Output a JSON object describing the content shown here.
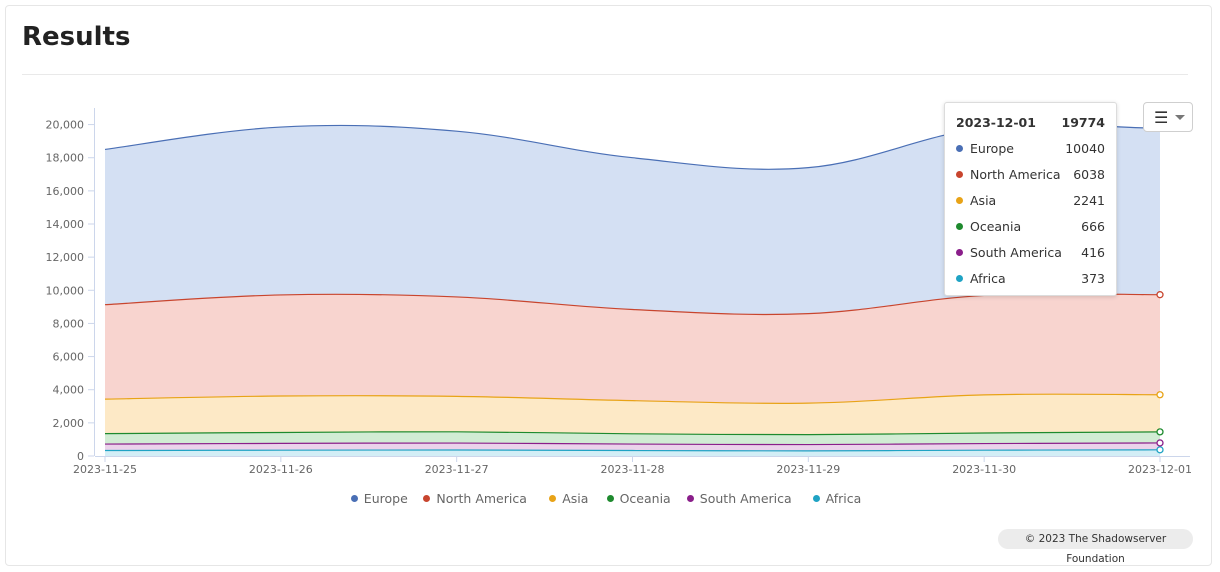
{
  "page": {
    "title": "Results"
  },
  "toolbar": {
    "menu_icon": "hamburger-icon"
  },
  "tooltip": {
    "date": "2023-12-01",
    "total": "19774",
    "rows": [
      {
        "label": "Europe",
        "value": "10040",
        "color": "#4a6fb5"
      },
      {
        "label": "North America",
        "value": "6038",
        "color": "#c8452e"
      },
      {
        "label": "Asia",
        "value": "2241",
        "color": "#e8a317"
      },
      {
        "label": "Oceania",
        "value": "666",
        "color": "#1e8a2e"
      },
      {
        "label": "South America",
        "value": "416",
        "color": "#8a1e8a"
      },
      {
        "label": "Africa",
        "value": "373",
        "color": "#1fa3c4"
      }
    ]
  },
  "credit": "© 2023 The Shadowserver Foundation",
  "chart_data": {
    "type": "area",
    "stacked": true,
    "x": [
      "2023-11-25",
      "2023-11-26",
      "2023-11-27",
      "2023-11-28",
      "2023-11-29",
      "2023-11-30",
      "2023-12-01"
    ],
    "ylim": [
      0,
      21000
    ],
    "yticks": [
      0,
      2000,
      4000,
      6000,
      8000,
      10000,
      12000,
      14000,
      16000,
      18000,
      20000
    ],
    "ytick_labels": [
      "0",
      "2,000",
      "4,000",
      "6,000",
      "8,000",
      "10,000",
      "12,000",
      "14,000",
      "16,000",
      "18,000",
      "20,000"
    ],
    "grid": false,
    "legend": "bottom-center",
    "series": [
      {
        "name": "Africa",
        "color": "#1fa3c4",
        "fill": "#d3eef6",
        "values": [
          330,
          350,
          360,
          330,
          310,
          350,
          373
        ]
      },
      {
        "name": "South America",
        "color": "#8a1e8a",
        "fill": "#ebd3eb",
        "values": [
          390,
          410,
          420,
          390,
          380,
          400,
          416
        ]
      },
      {
        "name": "Oceania",
        "color": "#1e8a2e",
        "fill": "#d1ecd4",
        "values": [
          630,
          660,
          680,
          620,
          600,
          640,
          666
        ]
      },
      {
        "name": "Asia",
        "color": "#e8a317",
        "fill": "#fde9c6",
        "values": [
          2080,
          2200,
          2140,
          2000,
          1900,
          2300,
          2241
        ]
      },
      {
        "name": "North America",
        "color": "#c8452e",
        "fill": "#f8d4cf",
        "values": [
          5700,
          6100,
          6000,
          5500,
          5400,
          6000,
          6038
        ]
      },
      {
        "name": "Europe",
        "color": "#4a6fb5",
        "fill": "#d4e0f3",
        "values": [
          9370,
          10130,
          10000,
          9160,
          8810,
          10100,
          10040
        ]
      }
    ],
    "legend_order": [
      "Europe",
      "North America",
      "Asia",
      "Oceania",
      "South America",
      "Africa"
    ]
  }
}
